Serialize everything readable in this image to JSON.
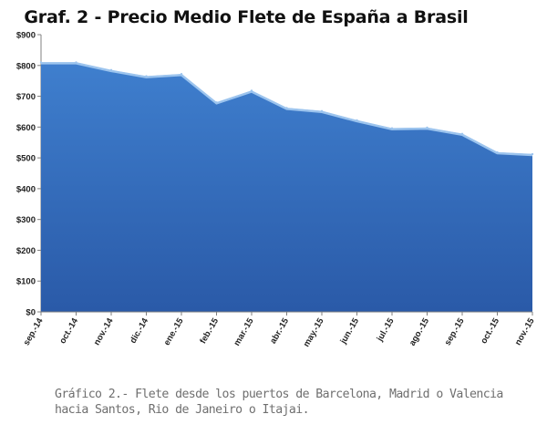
{
  "chart_data": {
    "type": "area",
    "title": "Graf. 2 - Precio Medio Flete de España a Brasil",
    "categories": [
      "sep.-14",
      "oct.-14",
      "nov.-14",
      "dic.-14",
      "ene.-15",
      "feb.-15",
      "mar.-15",
      "abr.-15",
      "may.-15",
      "jun.-15",
      "jul.-15",
      "ago.-15",
      "sep.-15",
      "oct.-15",
      "nov.-15"
    ],
    "values": [
      810,
      810,
      785,
      765,
      772,
      680,
      718,
      662,
      652,
      622,
      596,
      598,
      578,
      518,
      512
    ],
    "y_ticks": [
      "$0",
      "$100",
      "$200",
      "$300",
      "$400",
      "$500",
      "$600",
      "$700",
      "$800",
      "$900"
    ],
    "y_tick_values": [
      0,
      100,
      200,
      300,
      400,
      500,
      600,
      700,
      800,
      900
    ],
    "ylim": [
      0,
      900
    ],
    "xlabel": "",
    "ylabel": "",
    "grid": false,
    "colors": {
      "fill_top": "#3f7fce",
      "fill_bottom": "#2a5aa8",
      "edge": "#9cc4ee",
      "axis": "#808080",
      "label": "#222222"
    }
  },
  "caption": "Gráfico 2.- Flete desde los puertos de Barcelona, Madrid o Valencia hacia Santos, Rio de Janeiro o Itajai."
}
